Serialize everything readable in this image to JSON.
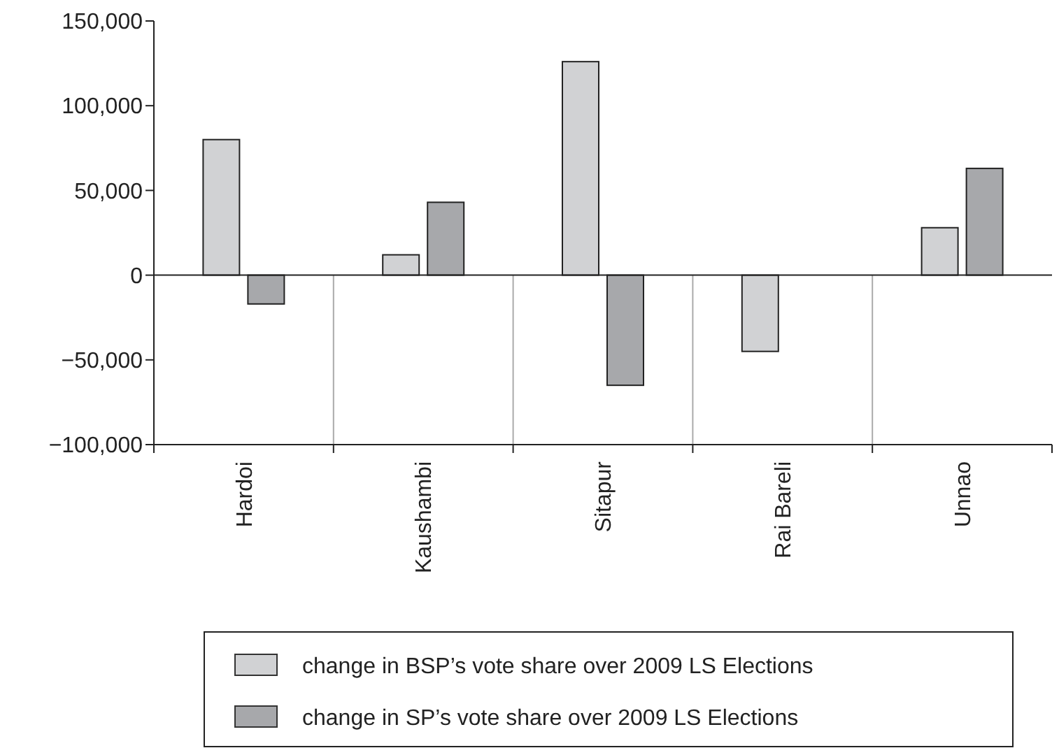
{
  "chart_data": {
    "type": "bar",
    "categories": [
      "Hardoi",
      "Kaushambi",
      "Sitapur",
      "Rai Bareli",
      "Unnao"
    ],
    "series": [
      {
        "name": "change in BSP’s vote share over 2009 LS Elections",
        "color": "#d1d2d4",
        "values": [
          80000,
          12000,
          126000,
          -45000,
          28000
        ]
      },
      {
        "name": "change in SP’s vote share over 2009 LS Elections",
        "color": "#a7a8ab",
        "values": [
          -17000,
          43000,
          -65000,
          null,
          63000
        ]
      }
    ],
    "ylim": [
      -100000,
      150000
    ],
    "yticks": [
      {
        "value": -100000,
        "label": "−100,000"
      },
      {
        "value": -50000,
        "label": "−50,000"
      },
      0,
      {
        "value": 50000,
        "label": "50,000"
      },
      {
        "value": 100000,
        "label": "100,000"
      },
      {
        "value": 150000,
        "label": "150,000"
      }
    ],
    "legend": "bottom"
  }
}
